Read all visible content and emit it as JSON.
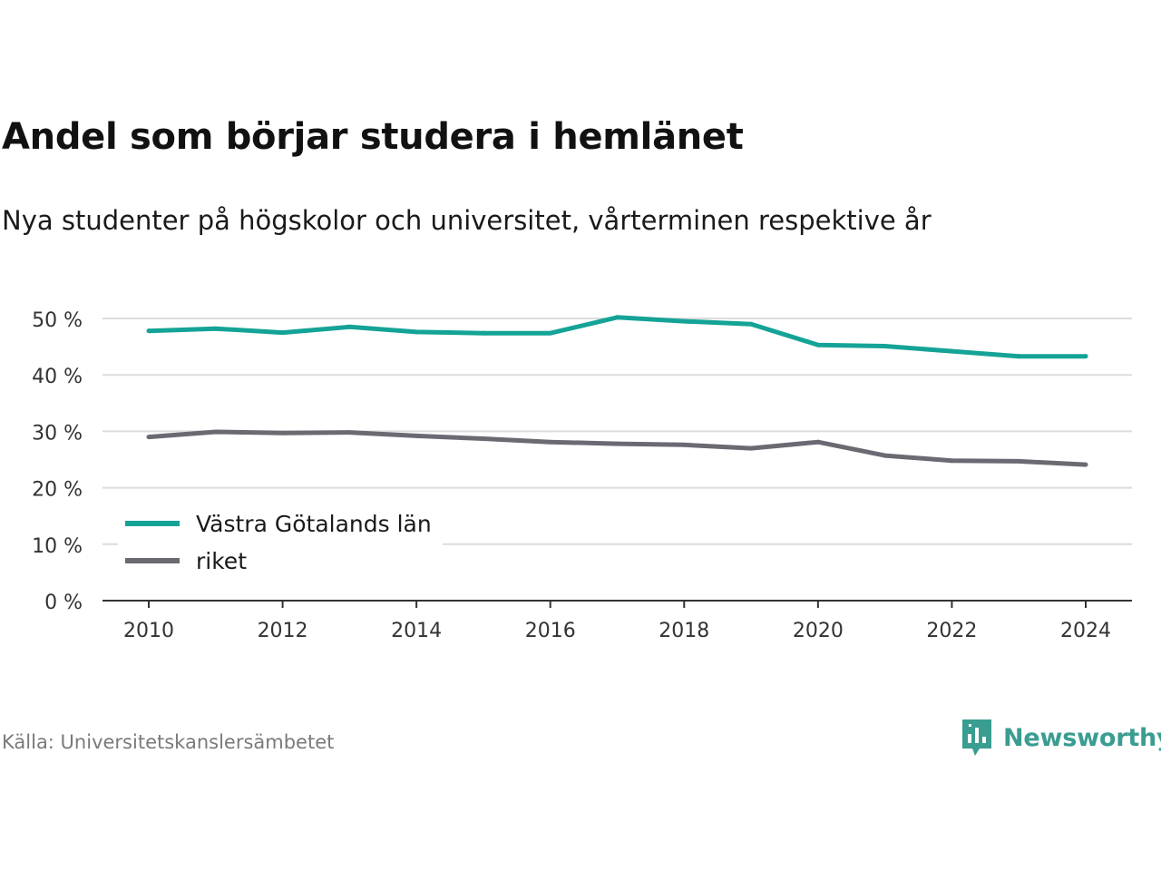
{
  "header": {
    "title": "Andel som börjar studera i hemlänet",
    "subtitle": "Nya studenter på högskolor och universitet, vårterminen respektive år"
  },
  "footer": {
    "source": "Källa: Universitetskanslersämbetet",
    "brand": "Newsworthy",
    "brand_icon": "newsworthy-logo-icon"
  },
  "colors": {
    "series_teal": "#14a396",
    "series_gray": "#6b6a72",
    "grid": "#dcdcdc",
    "axis": "#333333",
    "brand": "#3a9d91"
  },
  "chart_data": {
    "type": "line",
    "title": "Andel som börjar studera i hemlänet",
    "subtitle": "Nya studenter på högskolor och universitet, vårterminen respektive år",
    "xlabel": "",
    "ylabel": "",
    "x": [
      2010,
      2011,
      2012,
      2013,
      2014,
      2015,
      2016,
      2017,
      2018,
      2019,
      2020,
      2021,
      2022,
      2023,
      2024
    ],
    "x_ticks": [
      "2010",
      "2012",
      "2014",
      "2016",
      "2018",
      "2020",
      "2022",
      "2024"
    ],
    "y_ticks": [
      "0 %",
      "10 %",
      "20 %",
      "30 %",
      "40 %",
      "50 %"
    ],
    "ylim": [
      0,
      50
    ],
    "grid": true,
    "legend_position": "bottom-left",
    "series": [
      {
        "name": "Västra Götalands län",
        "color": "#14a396",
        "values": [
          47.8,
          48.2,
          47.5,
          48.5,
          47.6,
          47.4,
          47.4,
          50.2,
          49.5,
          49.0,
          45.3,
          45.1,
          44.2,
          43.3,
          43.3
        ]
      },
      {
        "name": "riket",
        "color": "#6b6a72",
        "values": [
          29.0,
          29.9,
          29.7,
          29.8,
          29.2,
          28.7,
          28.1,
          27.8,
          27.6,
          27.0,
          28.1,
          25.7,
          24.8,
          24.7,
          24.1
        ]
      }
    ]
  }
}
